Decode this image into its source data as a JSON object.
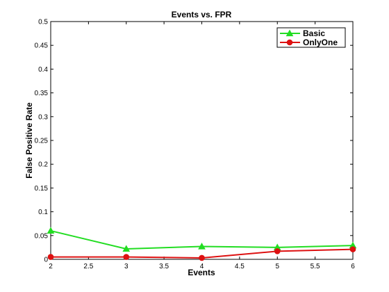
{
  "chart_data": {
    "type": "line",
    "title": "Events vs. FPR",
    "xlabel": "Events",
    "ylabel": "False Positive Rate",
    "xlim": [
      2,
      6
    ],
    "ylim": [
      0,
      0.5
    ],
    "xticks": [
      "2",
      "2.5",
      "3",
      "3.5",
      "4",
      "4.5",
      "5",
      "5.5",
      "6"
    ],
    "yticks": [
      "0",
      "0.05",
      "0.1",
      "0.15",
      "0.2",
      "0.25",
      "0.3",
      "0.35",
      "0.4",
      "0.45",
      "0.5"
    ],
    "grid": false,
    "legend_position": "top-right",
    "x": [
      2,
      3,
      4,
      5,
      6
    ],
    "series": [
      {
        "name": "Basic",
        "color": "#22dd22",
        "marker": "triangle",
        "values": [
          0.06,
          0.022,
          0.027,
          0.025,
          0.029
        ]
      },
      {
        "name": "OnlyOne",
        "color": "#dd1111",
        "marker": "circle",
        "values": [
          0.005,
          0.005,
          0.003,
          0.017,
          0.021
        ]
      }
    ]
  }
}
